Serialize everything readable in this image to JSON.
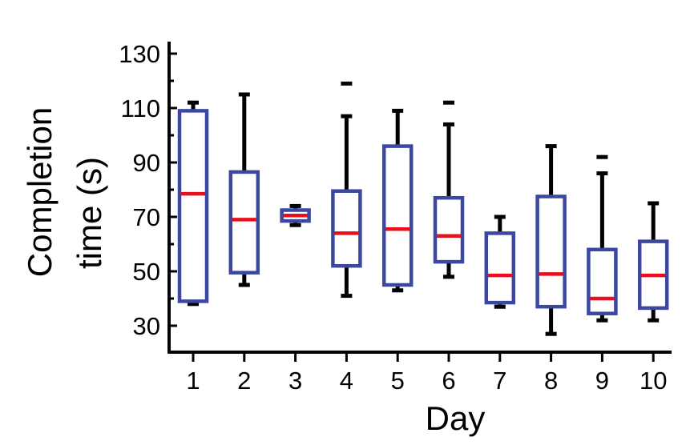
{
  "chart_data": {
    "type": "box",
    "title": "",
    "xlabel": "Day",
    "ylabel_lines": [
      "Completion",
      "time (s)"
    ],
    "ylim": [
      20,
      130
    ],
    "yticks": [
      30,
      50,
      70,
      90,
      110,
      130
    ],
    "yminor": [
      40,
      60,
      80,
      100,
      120
    ],
    "categories": [
      "1",
      "2",
      "3",
      "4",
      "5",
      "6",
      "7",
      "8",
      "9",
      "10"
    ],
    "boxes": [
      {
        "lw": 38,
        "q1": 39,
        "median": 78.5,
        "q3": 109,
        "uw": 112,
        "outliers": []
      },
      {
        "lw": 45,
        "q1": 49.5,
        "median": 69,
        "q3": 86.5,
        "uw": 115,
        "outliers": []
      },
      {
        "lw": 67,
        "q1": 68.5,
        "median": 70.5,
        "q3": 72.5,
        "uw": 74,
        "outliers": []
      },
      {
        "lw": 41,
        "q1": 52,
        "median": 64,
        "q3": 79.5,
        "uw": 107,
        "outliers": [
          119
        ]
      },
      {
        "lw": 43,
        "q1": 45,
        "median": 65.5,
        "q3": 96,
        "uw": 109,
        "outliers": []
      },
      {
        "lw": 48,
        "q1": 53.5,
        "median": 63,
        "q3": 77,
        "uw": 104,
        "outliers": [
          112
        ]
      },
      {
        "lw": 37,
        "q1": 38.5,
        "median": 48.5,
        "q3": 64,
        "uw": 70,
        "outliers": []
      },
      {
        "lw": 27,
        "q1": 37,
        "median": 49,
        "q3": 77.5,
        "uw": 96,
        "outliers": []
      },
      {
        "lw": 32,
        "q1": 34.5,
        "median": 40,
        "q3": 58,
        "uw": 86,
        "outliers": [
          92
        ]
      },
      {
        "lw": 32,
        "q1": 36.5,
        "median": 48.5,
        "q3": 61,
        "uw": 75,
        "outliers": []
      }
    ],
    "colors": {
      "box": "#3b47a0",
      "median": "#e8101c",
      "whisker": "#000000",
      "axis": "#000000"
    },
    "grid": false,
    "legend": "none"
  }
}
